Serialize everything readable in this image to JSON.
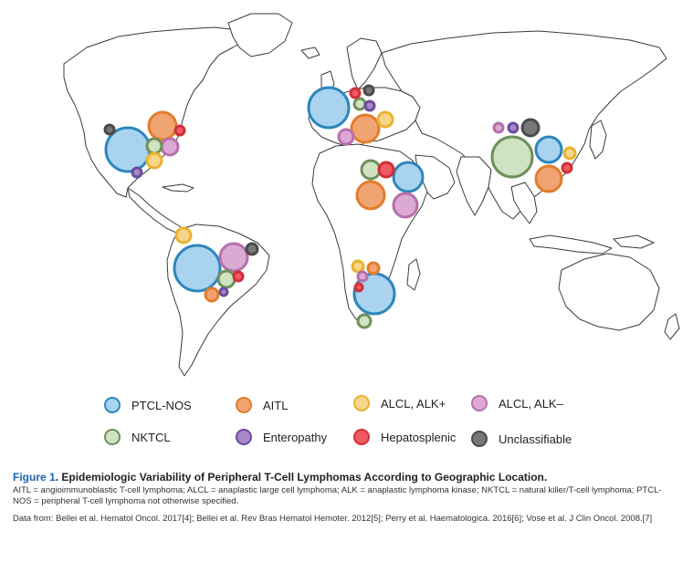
{
  "legend": [
    {
      "key": "ptcl",
      "label": "PTCL-NOS",
      "fill": "#a9d3ee",
      "stroke": "#2d86bd"
    },
    {
      "key": "aitl",
      "label": "AITL",
      "fill": "#f0a472",
      "stroke": "#e37c2a"
    },
    {
      "key": "alk_pos",
      "label": "ALCL, ALK+",
      "fill": "#f7d58a",
      "stroke": "#eab22e"
    },
    {
      "key": "alk_neg",
      "label": "ALCL, ALK–",
      "fill": "#dca9d3",
      "stroke": "#b66fab"
    },
    {
      "key": "nktcl",
      "label": "NKTCL",
      "fill": "#cfe3c3",
      "stroke": "#6f8f5a"
    },
    {
      "key": "entero",
      "label": "Enteropathy",
      "fill": "#a887c7",
      "stroke": "#6a4c9c"
    },
    {
      "key": "hepato",
      "label": "Hepatosplenic",
      "fill": "#ef5a63",
      "stroke": "#cf2f39"
    },
    {
      "key": "unclass",
      "label": "Unclassifiable",
      "fill": "#777777",
      "stroke": "#4a4a4a"
    }
  ],
  "caption": {
    "figure_label": "Figure 1",
    "title": ". Epidemiologic Variability of Peripheral T-Cell Lymphomas According to Geographic Location.",
    "abbreviations": "AITL = angioimmunoblastic T-cell lymphoma; ALCL = anaplastic large cell lymphoma; ALK = anaplastic lymphoma kinase; NKTCL = natural killer/T-cell lymphoma; PTCL-NOS = peripheral T-cell lymphoma not otherwise specified.",
    "sources": "Data from: Bellei et al. Hematol Oncol. 2017[4]; Bellei et al. Rev Bras Hematol Hemoter. 2012[5]; Perry et al. Haematologica. 2016[6]; Vose et al. J Clin Oncol. 2008.[7]"
  }
}
